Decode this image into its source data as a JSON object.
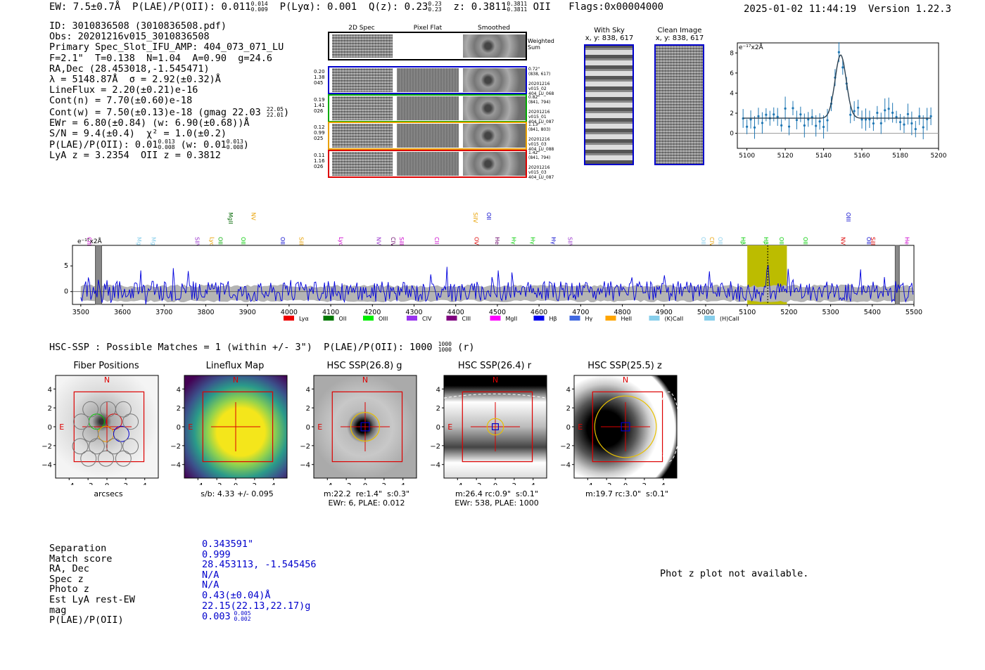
{
  "header": {
    "ew_label": "EW: ",
    "ew_value": "7.5±0.7Å",
    "plae_label": "P(LAE)/P(OII): ",
    "plae_value": "0.011",
    "plae_hi": "0.014",
    "plae_lo": "0.009",
    "plya_label": "P(Lyα): ",
    "plya_value": "0.001",
    "qz_label": "Q(z): ",
    "qz_value": "0.23",
    "qz_hi": "0.23",
    "qz_lo": "0.23",
    "z_label": "z: ",
    "z_value": "0.3811",
    "z_hi": "0.3811",
    "z_lo": "0.3811",
    "z_line": "OII",
    "flags": "Flags:0x00004000",
    "datetime": "2025-01-02 11:44:19",
    "version": "Version 1.22.3"
  },
  "info": {
    "id": "ID: 3010836508 (3010836508.pdf)",
    "obs": "Obs: 20201216v015_3010836508",
    "primary": "Primary Spec_Slot_IFU_AMP: 404_073_071_LU",
    "fit": "F=2.1\"  T=0.138  N=1.04  A=0.90  g=24.6",
    "radec": "RA,Dec (28.453018,-1.545471)",
    "lambda": "λ = 5148.87Å  σ = 2.92(±0.32)Å",
    "lineflux": "LineFlux = 2.20(±0.21)e-16",
    "contn": "Cont(n) = 7.70(±0.60)e-18",
    "contw": "Cont(w) = 7.50(±0.13)e-18 (gmag 22.03",
    "contw_hi": "22.05",
    "contw_lo": "22.01",
    "ewr": "EWr = 6.80(±0.84) (w: 6.90(±0.68))Å",
    "sn": "S/N = 9.4(±0.4)  χ² = 1.0(±0.2)",
    "plae": "P(LAE)/P(OII): 0.01",
    "plae_hi": "0.013",
    "plae_lo": "0.008",
    "plae_w": "(w: 0.01",
    "plae_w_hi": "0.013",
    "plae_w_lo": "0.008",
    "lya": "LyA z = 3.2354  OII z = 0.3812"
  },
  "cutouts": {
    "col_2d": "2D Spec",
    "col_flat": "Pixel Flat",
    "col_smooth": "Smoothed",
    "weighted": "Weighted\nSum",
    "rows": [
      {
        "left": "0.20\n1.38\n045",
        "right": "0.72\"\n(838, 617)\n\n20201216\nv015_02\n404_LU_068",
        "color": "#0000cc"
      },
      {
        "left": "0.19\n1.41\n026",
        "right": "0.82\"\n(841, 794)\n\n20201216\nv015_01\n404_LU_087",
        "color": "#00aa00"
      },
      {
        "left": "0.12\n0.99\n025",
        "right": "1.13\"\n(841, 803)\n\n20201216\nv015_03\n404_LU_088",
        "color": "#e8a000"
      },
      {
        "left": "0.11\n1.16\n026",
        "right": "1.42\"\n(841, 794)\n\n20201216\nv015_03\n404_LU_087",
        "color": "#dd0000"
      }
    ]
  },
  "sky": {
    "title": "With Sky",
    "coords": "x, y: 838, 617"
  },
  "clean": {
    "title": "Clean Image",
    "coords": "x, y: 838, 617"
  },
  "zoom_chart": {
    "unit": "e⁻¹⁷x2Å",
    "xticks": [
      "5100",
      "5120",
      "5140",
      "5160",
      "5180",
      "5200"
    ],
    "yticks": [
      "8",
      "6",
      "4",
      "2",
      "0"
    ]
  },
  "spectrum": {
    "unit": "e⁻¹⁷x2Å",
    "xticks": [
      "3500",
      "3600",
      "3700",
      "3800",
      "3900",
      "4000",
      "4100",
      "4200",
      "4300",
      "4400",
      "4500",
      "4600",
      "4700",
      "4800",
      "4900",
      "5000",
      "5100",
      "5200",
      "5300",
      "5400",
      "5500"
    ],
    "yticks": [
      "5",
      "0"
    ],
    "lines": [
      {
        "name": "CIII",
        "color": "#cc00cc"
      },
      {
        "name": "MgII",
        "color": "#87ceeb"
      },
      {
        "name": "MgII",
        "color": "#87ceeb"
      },
      {
        "name": "SIIV",
        "color": "#9933cc"
      },
      {
        "name": "Lyα",
        "color": "#e8a000"
      },
      {
        "name": "OII",
        "color": "#00aa00"
      },
      {
        "name": "MgII",
        "color": "#006600"
      },
      {
        "name": "OII",
        "color": "#00cc00"
      },
      {
        "name": "NV",
        "color": "#e8a000"
      },
      {
        "name": "OII",
        "color": "#0000cc"
      },
      {
        "name": "SiII",
        "color": "#e8a000"
      },
      {
        "name": "Lyα",
        "color": "#cc00cc"
      },
      {
        "name": "NV",
        "color": "#9933cc"
      },
      {
        "name": "CIV",
        "color": "#660066"
      },
      {
        "name": "SiII",
        "color": "#cc00cc"
      },
      {
        "name": "CII",
        "color": "#cc00cc"
      },
      {
        "name": "SiIV",
        "color": "#e8a000"
      },
      {
        "name": "OVI",
        "color": "#dd0000"
      },
      {
        "name": "OII",
        "color": "#0000cc"
      },
      {
        "name": "HeII",
        "color": "#660066"
      },
      {
        "name": "Hγ",
        "color": "#00cc00"
      },
      {
        "name": "Hγ",
        "color": "#00cc00"
      },
      {
        "name": "Hγ",
        "color": "#0000cc"
      },
      {
        "name": "SIIV",
        "color": "#9933cc"
      },
      {
        "name": "OII",
        "color": "#87ceeb"
      },
      {
        "name": "CIV",
        "color": "#e8a000"
      },
      {
        "name": "OII",
        "color": "#87ceeb"
      },
      {
        "name": "Hβ",
        "color": "#00cc00"
      },
      {
        "name": "Hβ",
        "color": "#00cc00"
      },
      {
        "name": "OIII",
        "color": "#00cc00"
      },
      {
        "name": "OIII",
        "color": "#00cc00"
      },
      {
        "name": "NV",
        "color": "#dd0000"
      },
      {
        "name": "OIII",
        "color": "#0000cc"
      },
      {
        "name": "OIII",
        "color": "#0000cc"
      },
      {
        "name": "SiII",
        "color": "#dd0000"
      },
      {
        "name": "HeII",
        "color": "#cc00cc"
      }
    ],
    "legend": [
      {
        "name": "Lyα",
        "color": "#ee0000"
      },
      {
        "name": "OII",
        "color": "#007700"
      },
      {
        "name": "OIII",
        "color": "#00ee00"
      },
      {
        "name": "CIV",
        "color": "#9933ee"
      },
      {
        "name": "CIII",
        "color": "#800080"
      },
      {
        "name": "MgII",
        "color": "#ff00ff"
      },
      {
        "name": "Hβ",
        "color": "#0000ee"
      },
      {
        "name": "Hγ",
        "color": "#4169e1"
      },
      {
        "name": "HeII",
        "color": "#ffa500"
      },
      {
        "name": "(K)CaII",
        "color": "#87ceeb"
      },
      {
        "name": "(H)CaII",
        "color": "#87ceeb"
      }
    ]
  },
  "hsc": {
    "line": "HSC-SSP : Possible Matches = 1 (within +/- 3\")  P(LAE)/P(OII): 1000",
    "hi": "1000",
    "lo": "1000",
    "suffix": "(r)"
  },
  "panels": [
    {
      "title": "Fiber Positions",
      "cap": "arcsecs"
    },
    {
      "title": "Lineflux Map",
      "cap": "s/b: 4.33 +/- 0.095"
    },
    {
      "title": "HSC SSP(26.8) g",
      "cap": "m:22.2  re:1.4\"  s:0.3\"\nEWr: 6, PLAE: 0.012"
    },
    {
      "title": "HSC SSP(26.4) r",
      "cap": "m:26.4 rc:0.9\"  s:0.1\"\nEWr: 538, PLAE: 1000"
    },
    {
      "title": "HSC SSP(25.5) z",
      "cap": "m:19.7 rc:3.0\"  s:0.1\""
    }
  ],
  "panel_axis": {
    "ticks": [
      "−4",
      "−2",
      "0",
      "2",
      "4"
    ],
    "yticks": [
      "4",
      "2",
      "0",
      "−2",
      "−4"
    ],
    "n": "N",
    "e": "E"
  },
  "match": {
    "labels": [
      "Separation",
      "Match score",
      "RA, Dec",
      "Spec z",
      "Photo z",
      "Est LyA rest-EW",
      "mag",
      "P(LAE)/P(OII)"
    ],
    "values": [
      "0.343591\"",
      "0.999",
      "28.453113, -1.545456",
      "N/A",
      "N/A",
      "0.43(±0.04)Å",
      "22.15(22.13,22.17)g",
      "0.003"
    ],
    "plae_hi": "0.005",
    "plae_lo": "0.002"
  },
  "photz": "Phot z plot not available."
}
